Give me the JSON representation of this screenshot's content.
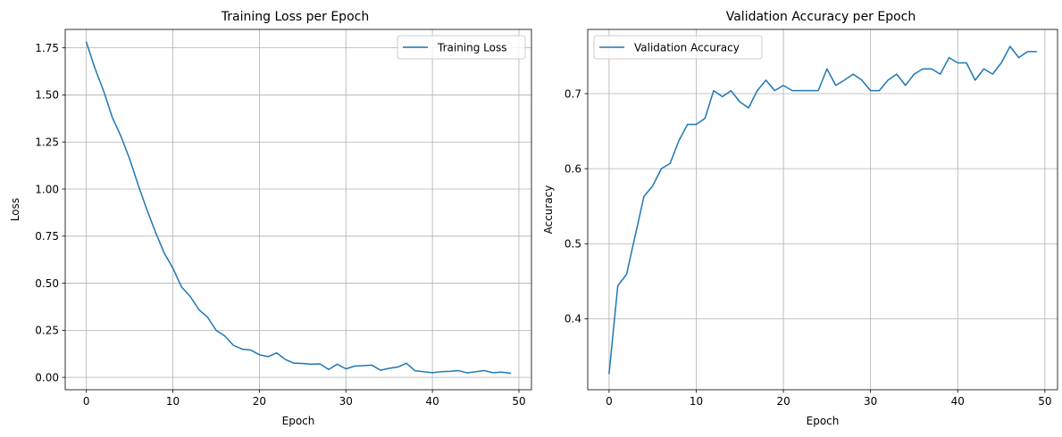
{
  "chart_data": [
    {
      "type": "line",
      "title": "Training Loss per Epoch",
      "xlabel": "Epoch",
      "ylabel": "Loss",
      "xlim": [
        -2.45,
        51.45
      ],
      "ylim": [
        -0.0656,
        1.8478
      ],
      "xticks": [
        0,
        10,
        20,
        30,
        40,
        50
      ],
      "yticks": [
        0.0,
        0.25,
        0.5,
        0.75,
        1.0,
        1.25,
        1.5,
        1.75
      ],
      "ytick_labels": [
        "0.00",
        "0.25",
        "0.50",
        "0.75",
        "1.00",
        "1.25",
        "1.50",
        "1.75"
      ],
      "grid": true,
      "legend": "top-right",
      "series": [
        {
          "name": "Training Loss",
          "color": "#1f77b4",
          "x": [
            0,
            1,
            2,
            3,
            4,
            5,
            6,
            7,
            8,
            9,
            10,
            11,
            12,
            13,
            14,
            15,
            16,
            17,
            18,
            19,
            20,
            21,
            22,
            23,
            24,
            25,
            26,
            27,
            28,
            29,
            30,
            31,
            32,
            33,
            34,
            35,
            36,
            37,
            38,
            39,
            40,
            41,
            42,
            43,
            44,
            45,
            46,
            47,
            48,
            49
          ],
          "values": [
            1.78,
            1.64,
            1.52,
            1.38,
            1.28,
            1.16,
            1.02,
            0.89,
            0.77,
            0.66,
            0.58,
            0.48,
            0.43,
            0.36,
            0.32,
            0.25,
            0.22,
            0.17,
            0.15,
            0.145,
            0.12,
            0.11,
            0.13,
            0.095,
            0.075,
            0.074,
            0.07,
            0.072,
            0.042,
            0.07,
            0.045,
            0.06,
            0.062,
            0.065,
            0.038,
            0.048,
            0.055,
            0.075,
            0.035,
            0.03,
            0.025,
            0.03,
            0.032,
            0.036,
            0.024,
            0.03,
            0.036,
            0.025,
            0.028,
            0.022
          ]
        }
      ]
    },
    {
      "type": "line",
      "title": "Validation Accuracy per Epoch",
      "xlabel": "Epoch",
      "ylabel": "Accuracy",
      "xlim": [
        -2.45,
        51.45
      ],
      "ylim": [
        0.3054,
        0.7856
      ],
      "xticks": [
        0,
        10,
        20,
        30,
        40,
        50
      ],
      "yticks": [
        0.4,
        0.5,
        0.6,
        0.7
      ],
      "ytick_labels": [
        "0.4",
        "0.5",
        "0.6",
        "0.7"
      ],
      "grid": true,
      "legend": "top-left",
      "series": [
        {
          "name": "Validation Accuracy",
          "color": "#1f77b4",
          "x": [
            0,
            1,
            2,
            3,
            4,
            5,
            6,
            7,
            8,
            9,
            10,
            11,
            12,
            13,
            14,
            15,
            16,
            17,
            18,
            19,
            20,
            21,
            22,
            23,
            24,
            25,
            26,
            27,
            28,
            29,
            30,
            31,
            32,
            33,
            34,
            35,
            36,
            37,
            38,
            39,
            40,
            41,
            42,
            43,
            44,
            45,
            46,
            47,
            48,
            49
          ],
          "values": [
            0.327,
            0.444,
            0.459,
            0.511,
            0.563,
            0.577,
            0.6,
            0.607,
            0.637,
            0.659,
            0.659,
            0.667,
            0.704,
            0.696,
            0.704,
            0.689,
            0.681,
            0.704,
            0.718,
            0.704,
            0.711,
            0.704,
            0.704,
            0.704,
            0.704,
            0.733,
            0.711,
            0.718,
            0.726,
            0.718,
            0.704,
            0.704,
            0.718,
            0.726,
            0.711,
            0.726,
            0.733,
            0.733,
            0.726,
            0.748,
            0.741,
            0.741,
            0.718,
            0.733,
            0.726,
            0.741,
            0.763,
            0.748,
            0.756,
            0.756
          ]
        }
      ]
    }
  ]
}
